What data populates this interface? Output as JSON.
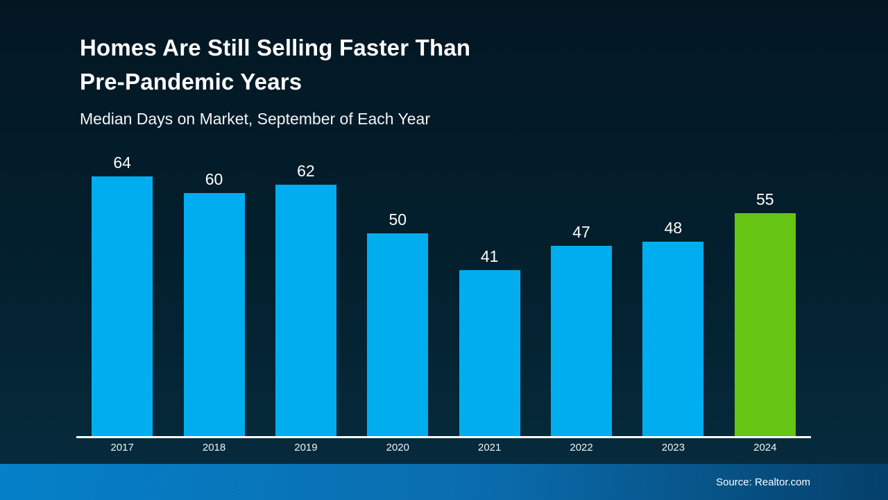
{
  "header": {
    "title_line1": "Homes Are Still Selling Faster Than",
    "title_line2": "Pre-Pandemic Years",
    "subtitle": "Median Days on Market, September of Each Year"
  },
  "chart_data": {
    "type": "bar",
    "title": "Homes Are Still Selling Faster Than Pre-Pandemic Years",
    "subtitle": "Median Days on Market, September of Each Year",
    "categories": [
      "2017",
      "2018",
      "2019",
      "2020",
      "2021",
      "2022",
      "2023",
      "2024"
    ],
    "values": [
      64,
      60,
      62,
      50,
      41,
      47,
      48,
      55
    ],
    "xlabel": "",
    "ylabel": "",
    "ylim": [
      0,
      70
    ],
    "grid": false,
    "legend": "none",
    "value_labels_shown": true,
    "bar_colors": [
      "#00AEEF",
      "#00AEEF",
      "#00AEEF",
      "#00AEEF",
      "#00AEEF",
      "#00AEEF",
      "#00AEEF",
      "#66C514"
    ],
    "highlight_category": "2024",
    "highlight_color": "#66C514"
  },
  "colors": {
    "bar_blue": "#00AEEF",
    "bar_green": "#66C514",
    "background_top": "#031723",
    "background_bottom": "#062b3c",
    "footer_left": "#0581C9",
    "footer_right": "#05406A",
    "axis_line": "#FFFFFF",
    "text": "#FFFFFF"
  },
  "footer": {
    "source": "Source: Realtor.com"
  }
}
